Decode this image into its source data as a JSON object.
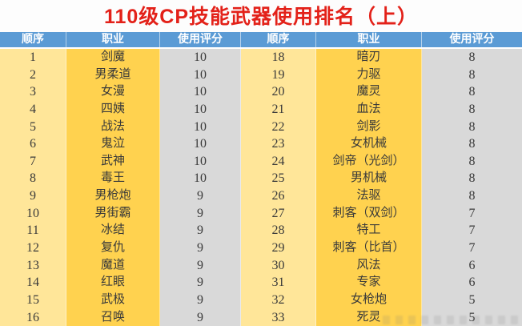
{
  "title": "110级CP技能武器使用排名（上）",
  "table": {
    "headers": [
      "顺序",
      "职业",
      "使用评分",
      "顺序",
      "职业",
      "使用评分"
    ],
    "left_rows": [
      {
        "rank": "1",
        "job": "剑魔",
        "score": "10"
      },
      {
        "rank": "2",
        "job": "男柔道",
        "score": "10"
      },
      {
        "rank": "3",
        "job": "女漫",
        "score": "10"
      },
      {
        "rank": "4",
        "job": "四姨",
        "score": "10"
      },
      {
        "rank": "5",
        "job": "战法",
        "score": "10"
      },
      {
        "rank": "6",
        "job": "鬼泣",
        "score": "10"
      },
      {
        "rank": "7",
        "job": "武神",
        "score": "10"
      },
      {
        "rank": "8",
        "job": "毒王",
        "score": "10"
      },
      {
        "rank": "9",
        "job": "男枪炮",
        "score": "9"
      },
      {
        "rank": "10",
        "job": "男街霸",
        "score": "9"
      },
      {
        "rank": "11",
        "job": "冰结",
        "score": "9"
      },
      {
        "rank": "12",
        "job": "复仇",
        "score": "9"
      },
      {
        "rank": "13",
        "job": "魔道",
        "score": "9"
      },
      {
        "rank": "14",
        "job": "红眼",
        "score": "9"
      },
      {
        "rank": "15",
        "job": "武极",
        "score": "9"
      },
      {
        "rank": "16",
        "job": "召唤",
        "score": "9"
      }
    ],
    "right_rows": [
      {
        "rank": "18",
        "job": "暗刃",
        "score": "8"
      },
      {
        "rank": "19",
        "job": "力驱",
        "score": "8"
      },
      {
        "rank": "20",
        "job": "魔灵",
        "score": "8"
      },
      {
        "rank": "21",
        "job": "血法",
        "score": "8"
      },
      {
        "rank": "22",
        "job": "剑影",
        "score": "8"
      },
      {
        "rank": "23",
        "job": "女机械",
        "score": "8"
      },
      {
        "rank": "24",
        "job": "剑帝（光剑）",
        "score": "8"
      },
      {
        "rank": "25",
        "job": "男机械",
        "score": "8"
      },
      {
        "rank": "26",
        "job": "法驱",
        "score": "8"
      },
      {
        "rank": "27",
        "job": "刺客（双剑）",
        "score": "7"
      },
      {
        "rank": "28",
        "job": "特工",
        "score": "7"
      },
      {
        "rank": "29",
        "job": "刺客（比首）",
        "score": "7"
      },
      {
        "rank": "30",
        "job": "风法",
        "score": "6"
      },
      {
        "rank": "31",
        "job": "专家",
        "score": "6"
      },
      {
        "rank": "32",
        "job": "女枪炮",
        "score": "5"
      },
      {
        "rank": "33",
        "job": "死灵",
        "score": "5"
      }
    ]
  },
  "colors": {
    "title_red": "#e32119",
    "header_blue": "#5b9bd5",
    "rank_yellow": "#ffe699",
    "job_gold": "#ffd24f",
    "score_gray": "#d9d9d9",
    "body_text": "#3a3a3a"
  },
  "chart_data": {
    "type": "table",
    "title": "110级CP技能武器使用排名（上）",
    "columns": [
      "顺序",
      "职业",
      "使用评分"
    ],
    "rows": [
      [
        1,
        "剑魔",
        10
      ],
      [
        2,
        "男柔道",
        10
      ],
      [
        3,
        "女漫",
        10
      ],
      [
        4,
        "四姨",
        10
      ],
      [
        5,
        "战法",
        10
      ],
      [
        6,
        "鬼泣",
        10
      ],
      [
        7,
        "武神",
        10
      ],
      [
        8,
        "毒王",
        10
      ],
      [
        9,
        "男枪炮",
        9
      ],
      [
        10,
        "男街霸",
        9
      ],
      [
        11,
        "冰结",
        9
      ],
      [
        12,
        "复仇",
        9
      ],
      [
        13,
        "魔道",
        9
      ],
      [
        14,
        "红眼",
        9
      ],
      [
        15,
        "武极",
        9
      ],
      [
        16,
        "召唤",
        9
      ],
      [
        18,
        "暗刃",
        8
      ],
      [
        19,
        "力驱",
        8
      ],
      [
        20,
        "魔灵",
        8
      ],
      [
        21,
        "血法",
        8
      ],
      [
        22,
        "剑影",
        8
      ],
      [
        23,
        "女机械",
        8
      ],
      [
        24,
        "剑帝（光剑）",
        8
      ],
      [
        25,
        "男机械",
        8
      ],
      [
        26,
        "法驱",
        8
      ],
      [
        27,
        "刺客（双剑）",
        7
      ],
      [
        28,
        "特工",
        7
      ],
      [
        29,
        "刺客（比首）",
        7
      ],
      [
        30,
        "风法",
        6
      ],
      [
        31,
        "专家",
        6
      ],
      [
        32,
        "女枪炮",
        5
      ],
      [
        33,
        "死灵",
        5
      ]
    ],
    "layout": "two side-by-side column groups: ranks 1-16 left, ranks 18-33 right"
  }
}
